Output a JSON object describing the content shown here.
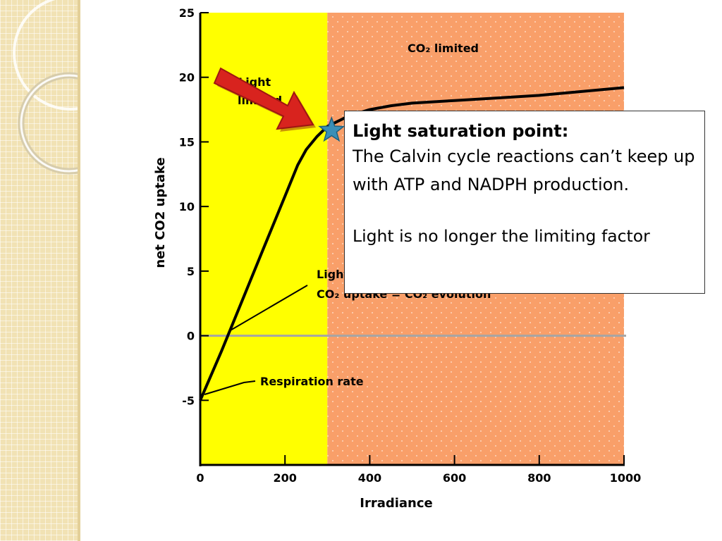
{
  "chart_data": {
    "type": "line",
    "xlabel": "Irradiance",
    "ylabel": "net CO2 uptake",
    "xlim": [
      0,
      1000
    ],
    "ylim": [
      -10,
      25
    ],
    "x_ticks": [
      "0",
      "200",
      "400",
      "600",
      "800",
      "1000"
    ],
    "y_ticks": [
      "-5",
      "0",
      "5",
      "10",
      "15",
      "20",
      "25"
    ],
    "series": [
      {
        "values_x": [
          0,
          50,
          100,
          150,
          200,
          230,
          250,
          275,
          300,
          350,
          400,
          450,
          500,
          600,
          700,
          800,
          900,
          1000
        ],
        "values_y": [
          -5,
          -1.2,
          2.8,
          6.8,
          10.8,
          13.2,
          14.4,
          15.4,
          16.2,
          17.0,
          17.5,
          17.8,
          18.0,
          18.2,
          18.4,
          18.6,
          18.9,
          19.2
        ]
      }
    ],
    "zero_line": true,
    "regions": [
      {
        "label_lines": [
          "Light",
          "limited"
        ],
        "x_from": 0,
        "x_to": 300,
        "color": "#ffff00"
      },
      {
        "label": "CO₂ limited",
        "x_from": 300,
        "x_to": 1000,
        "color": "#f99f69"
      }
    ],
    "annotations": {
      "compensation": [
        "Light compensation point:",
        "CO₂ uptake = CO₂ evolution"
      ],
      "respiration": "Respiration rate"
    },
    "highlight_point": {
      "x": 300,
      "y": 16
    }
  },
  "callout": {
    "title": "Light saturation point:",
    "body": "The Calvin cycle reactions can’t keep up with ATP and NADPH production.",
    "note": "Light is no longer the limiting factor"
  },
  "colors": {
    "light_limited": "#ffff00",
    "co2_limited": "#f99f69",
    "arrow": "#d8231e",
    "star": "#3a8fb7",
    "sidebar": "#f1e2b4"
  }
}
